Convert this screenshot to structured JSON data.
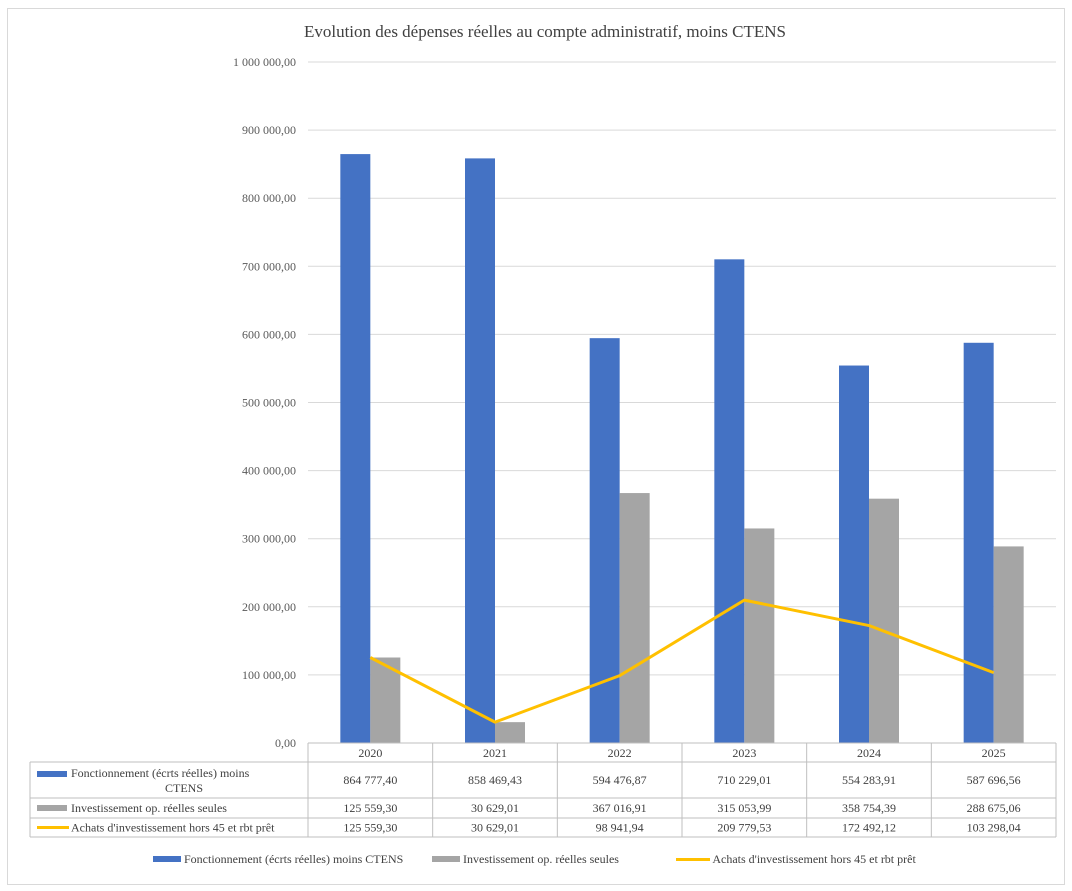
{
  "chart_data": {
    "type": "bar",
    "title": "Evolution des dépenses réelles au compte administratif, moins CTENS",
    "categories": [
      "2020",
      "2021",
      "2022",
      "2023",
      "2024",
      "2025"
    ],
    "ylim": [
      0,
      1000000
    ],
    "yticks": [
      "0,00",
      "100 000,00",
      "200 000,00",
      "300 000,00",
      "400 000,00",
      "500 000,00",
      "600 000,00",
      "700 000,00",
      "800 000,00",
      "900 000,00",
      "1 000 000,00"
    ],
    "grid": true,
    "legend": "bottom",
    "data_table": true,
    "series": [
      {
        "name": "Fonctionnement (écrts réelles) moins CTENS",
        "kind": "bar",
        "color": "#4472c4",
        "values": [
          864777.4,
          858469.43,
          594476.87,
          710229.01,
          554283.91,
          587696.56
        ],
        "labels": [
          "864 777,40",
          "858 469,43",
          "594 476,87",
          "710 229,01",
          "554 283,91",
          "587 696,56"
        ]
      },
      {
        "name": "Investissement op. réelles seules",
        "kind": "bar",
        "color": "#a5a5a5",
        "values": [
          125559.3,
          30629.01,
          367016.91,
          315053.99,
          358754.39,
          288675.06
        ],
        "labels": [
          "125 559,30",
          "30 629,01",
          "367 016,91",
          "315 053,99",
          "358 754,39",
          "288 675,06"
        ]
      },
      {
        "name": "Achats d'investissement hors 45 et rbt prêt",
        "kind": "line",
        "color": "#ffc000",
        "values": [
          125559.3,
          30629.01,
          98941.94,
          209779.53,
          172492.12,
          103298.04
        ],
        "labels": [
          "125 559,30",
          "30 629,01",
          "98 941,94",
          "209 779,53",
          "172 492,12",
          "103 298,04"
        ]
      }
    ]
  }
}
